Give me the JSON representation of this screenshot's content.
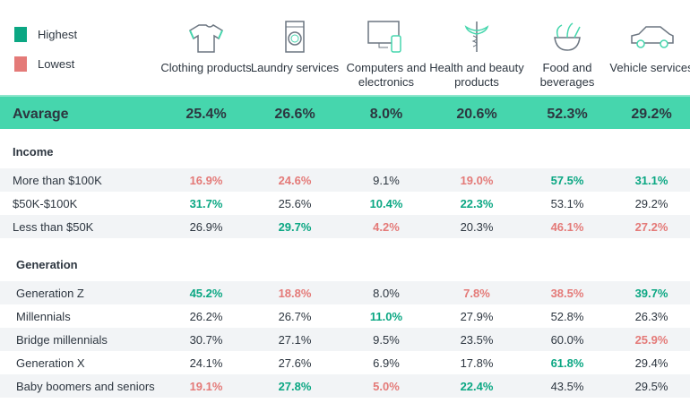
{
  "legend": [
    {
      "label": "Highest",
      "color": "#0ba783"
    },
    {
      "label": "Lowest",
      "color": "#e47a78"
    }
  ],
  "columns": [
    {
      "label": "Clothing products",
      "icon": "shirt-icon"
    },
    {
      "label": "Laundry services",
      "icon": "washing-machine-icon"
    },
    {
      "label": "Computers and electronics",
      "icon": "computer-phone-icon"
    },
    {
      "label": "Health and beauty products",
      "icon": "caduceus-icon"
    },
    {
      "label": "Food and beverages",
      "icon": "food-bowl-icon"
    },
    {
      "label": "Vehicle services",
      "icon": "car-icon"
    }
  ],
  "average": {
    "label": "Avarage",
    "values": [
      "25.4%",
      "26.6%",
      "8.0%",
      "20.6%",
      "52.3%",
      "29.2%"
    ],
    "color": "#46d6ad"
  },
  "chart_data": {
    "type": "table",
    "sections": [
      {
        "title": "Income",
        "rows": [
          {
            "label": "More than $100K",
            "values": [
              "16.9%",
              "24.6%",
              "9.1%",
              "19.0%",
              "57.5%",
              "31.1%"
            ],
            "flags": [
              "low",
              "low",
              "",
              "low",
              "high",
              "high"
            ]
          },
          {
            "label": "$50K-$100K",
            "values": [
              "31.7%",
              "25.6%",
              "10.4%",
              "22.3%",
              "53.1%",
              "29.2%"
            ],
            "flags": [
              "high",
              "",
              "high",
              "high",
              "",
              ""
            ]
          },
          {
            "label": "Less than $50K",
            "values": [
              "26.9%",
              "29.7%",
              "4.2%",
              "20.3%",
              "46.1%",
              "27.2%"
            ],
            "flags": [
              "",
              "high",
              "low",
              "",
              "low",
              "low"
            ]
          }
        ]
      },
      {
        "title": "Generation",
        "rows": [
          {
            "label": "Generation Z",
            "values": [
              "45.2%",
              "18.8%",
              "8.0%",
              "7.8%",
              "38.5%",
              "39.7%"
            ],
            "flags": [
              "high",
              "low",
              "",
              "low",
              "low",
              "high"
            ]
          },
          {
            "label": "Millennials",
            "values": [
              "26.2%",
              "26.7%",
              "11.0%",
              "27.9%",
              "52.8%",
              "26.3%"
            ],
            "flags": [
              "",
              "",
              "high",
              "",
              "",
              ""
            ]
          },
          {
            "label": "Bridge millennials",
            "values": [
              "30.7%",
              "27.1%",
              "9.5%",
              "23.5%",
              "60.0%",
              "25.9%"
            ],
            "flags": [
              "",
              "",
              "",
              "",
              "",
              "low"
            ]
          },
          {
            "label": "Generation X",
            "values": [
              "24.1%",
              "27.6%",
              "6.9%",
              "17.8%",
              "61.8%",
              "29.4%"
            ],
            "flags": [
              "",
              "",
              "",
              "",
              "high",
              ""
            ]
          },
          {
            "label": "Baby boomers and seniors",
            "values": [
              "19.1%",
              "27.8%",
              "5.0%",
              "22.4%",
              "43.5%",
              "29.5%"
            ],
            "flags": [
              "low",
              "high",
              "low",
              "high",
              "",
              ""
            ]
          }
        ]
      }
    ]
  }
}
